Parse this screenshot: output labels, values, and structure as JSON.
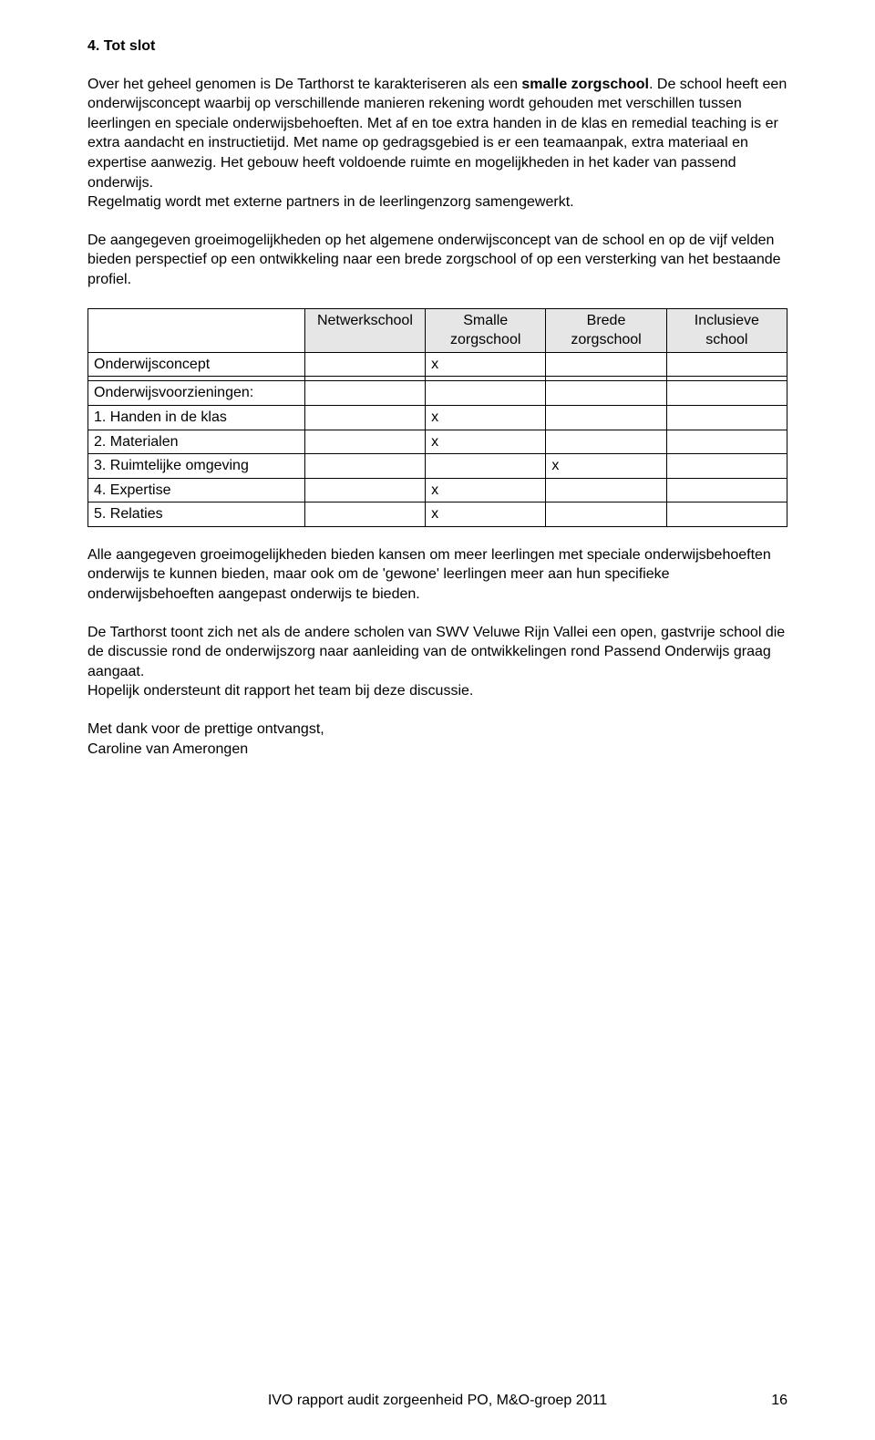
{
  "heading": "4. Tot slot",
  "para1_pre": "Over het geheel genomen is De Tarthorst te karakteriseren als een ",
  "para1_bold": "smalle zorgschool",
  "para1_post": ". De school heeft een onderwijsconcept waarbij op verschillende manieren rekening wordt gehouden met verschillen tussen leerlingen en speciale onderwijsbehoeften. Met af en toe extra handen in de klas en remedial teaching is er extra aandacht en instructietijd. Met name op gedragsgebied is er een teamaanpak, extra materiaal en expertise aanwezig. Het gebouw heeft voldoende ruimte en mogelijkheden in het kader van passend onderwijs.\nRegelmatig wordt met externe partners in de leerlingenzorg samengewerkt.",
  "para2": "De aangegeven groeimogelijkheden op het algemene onderwijsconcept van de school en op de vijf velden bieden perspectief op een ontwikkeling naar een brede zorgschool of op een versterking van het bestaande profiel.",
  "table": {
    "headers": [
      "",
      "Netwerkschool",
      "Smalle zorgschool",
      "Brede zorgschool",
      "Inclusieve school"
    ],
    "rows": [
      {
        "label": "Onderwijsconcept",
        "cells": [
          "",
          "x",
          "",
          ""
        ]
      },
      {
        "label": "",
        "cells": [
          "",
          "",
          "",
          ""
        ]
      },
      {
        "label": "Onderwijsvoorzieningen:",
        "cells": [
          "",
          "",
          "",
          ""
        ]
      },
      {
        "label": "1. Handen in de klas",
        "cells": [
          "",
          "x",
          "",
          ""
        ]
      },
      {
        "label": "2. Materialen",
        "cells": [
          "",
          "x",
          "",
          ""
        ]
      },
      {
        "label": "3. Ruimtelijke omgeving",
        "cells": [
          "",
          "",
          "x",
          ""
        ]
      },
      {
        "label": "4. Expertise",
        "cells": [
          "",
          "x",
          "",
          ""
        ]
      },
      {
        "label": "5. Relaties",
        "cells": [
          "",
          "x",
          "",
          ""
        ]
      }
    ]
  },
  "para3": "Alle aangegeven groeimogelijkheden bieden kansen om meer leerlingen met speciale onderwijsbehoeften onderwijs te kunnen bieden, maar ook om de 'gewone' leerlingen meer aan hun specifieke onderwijsbehoeften aangepast onderwijs te bieden.",
  "para4": "De Tarthorst toont zich net als de andere scholen van SWV Veluwe Rijn Vallei een open, gastvrije school die de discussie rond de onderwijszorg naar aanleiding van de ontwikkelingen rond Passend Onderwijs graag aangaat.\nHopelijk ondersteunt dit rapport het team bij deze discussie.",
  "para5": "Met dank voor de prettige ontvangst,\nCaroline van Amerongen",
  "footer": "IVO rapport audit zorgeenheid PO, M&O-groep 2011",
  "page_num": "16"
}
